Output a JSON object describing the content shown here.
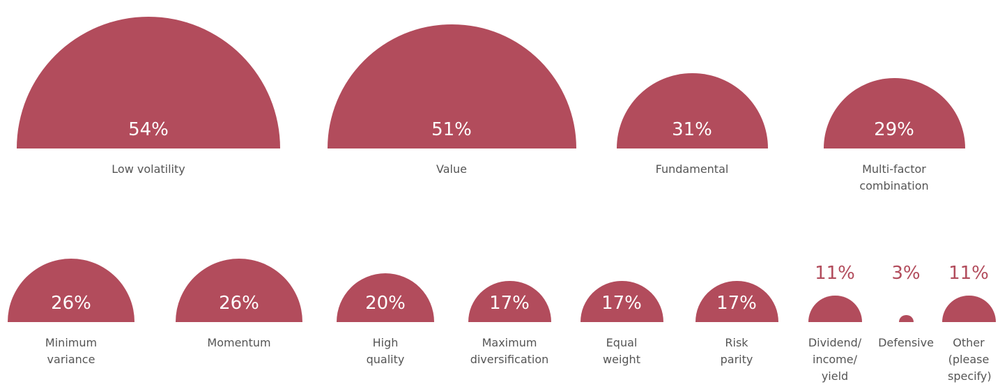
{
  "chart_data": {
    "type": "half-circle",
    "categories": [
      "Low volatility",
      "Value",
      "Fundamental",
      "Multi-factor combination",
      "Minimum variance",
      "Momentum",
      "High quality",
      "Maximum diversification",
      "Equal weight",
      "Risk parity",
      "Dividend/ income/ yield",
      "Defensive",
      "Other (please specify)"
    ],
    "values": [
      54,
      51,
      31,
      29,
      26,
      26,
      20,
      17,
      17,
      17,
      11,
      3,
      11
    ],
    "value_labels": [
      "54%",
      "51%",
      "31%",
      "29%",
      "26%",
      "26%",
      "20%",
      "17%",
      "17%",
      "17%",
      "11%",
      "3%",
      "11%"
    ],
    "color": "#b24c5c"
  }
}
